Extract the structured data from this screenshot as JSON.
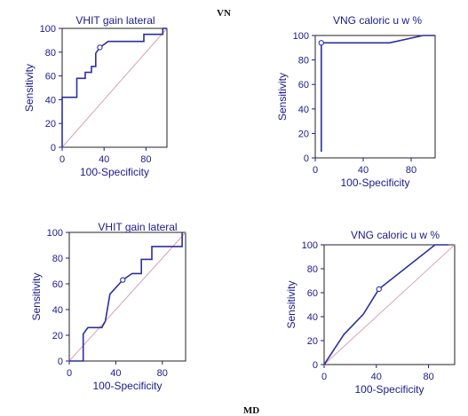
{
  "labels": {
    "top": "VN",
    "bottom": "MD"
  },
  "colors": {
    "curve": "#2b2f9e",
    "diagonal": "#d9a0b8",
    "text": "#1a1a8c"
  },
  "chart_data": [
    {
      "type": "line",
      "title": "VHIT gain lateral",
      "xlabel": "100-Specificity",
      "ylabel": "Sensitivity",
      "xlim": [
        0,
        100
      ],
      "ylim": [
        0,
        100
      ],
      "xticks": [
        0,
        40,
        80
      ],
      "yticks": [
        0,
        20,
        40,
        60,
        80,
        100
      ],
      "series": [
        {
          "values": [
            [
              0,
              0
            ],
            [
              0,
              42
            ],
            [
              14,
              42
            ],
            [
              14,
              58
            ],
            [
              22,
              58
            ],
            [
              22,
              63
            ],
            [
              28,
              63
            ],
            [
              28,
              68
            ],
            [
              32,
              68
            ],
            [
              32,
              79
            ],
            [
              36,
              84
            ],
            [
              44,
              89
            ],
            [
              78,
              89
            ],
            [
              78,
              95
            ],
            [
              96,
              95
            ],
            [
              96,
              100
            ],
            [
              100,
              100
            ]
          ]
        }
      ],
      "cutoff": [
        36,
        84
      ],
      "diagonal": true
    },
    {
      "type": "line",
      "title": "VNG caloric u w %",
      "xlabel": "100-Specificity",
      "ylabel": "Sensitivity",
      "xlim": [
        0,
        100
      ],
      "ylim": [
        0,
        100
      ],
      "xticks": [
        0,
        40,
        80
      ],
      "yticks": [
        0,
        20,
        40,
        60,
        80,
        100
      ],
      "series": [
        {
          "values": [
            [
              5,
              5
            ],
            [
              5,
              94
            ],
            [
              62,
              94
            ],
            [
              90,
              100
            ],
            [
              100,
              100
            ]
          ]
        }
      ],
      "cutoff": [
        5,
        94
      ],
      "diagonal": false
    },
    {
      "type": "line",
      "title": "VHIT gain lateral",
      "xlabel": "100-Specificity",
      "ylabel": "Sensitivity",
      "xlim": [
        0,
        100
      ],
      "ylim": [
        0,
        100
      ],
      "xticks": [
        0,
        40,
        80
      ],
      "yticks": [
        0,
        20,
        40,
        60,
        80,
        100
      ],
      "series": [
        {
          "values": [
            [
              0,
              0
            ],
            [
              12,
              0
            ],
            [
              12,
              21
            ],
            [
              16,
              26
            ],
            [
              28,
              26
            ],
            [
              31,
              31
            ],
            [
              35,
              52
            ],
            [
              46,
              63
            ],
            [
              54,
              68
            ],
            [
              62,
              68
            ],
            [
              62,
              79
            ],
            [
              71,
              79
            ],
            [
              71,
              89
            ],
            [
              97,
              89
            ],
            [
              97,
              100
            ]
          ]
        }
      ],
      "cutoff": [
        46,
        63
      ],
      "diagonal": true
    },
    {
      "type": "line",
      "title": "VNG caloric u w %",
      "xlabel": "100-Specificity",
      "ylabel": "Sensitivity",
      "xlim": [
        0,
        100
      ],
      "ylim": [
        0,
        100
      ],
      "xticks": [
        0,
        40,
        80
      ],
      "yticks": [
        0,
        20,
        40,
        60,
        80,
        100
      ],
      "series": [
        {
          "values": [
            [
              0,
              0
            ],
            [
              15,
              25
            ],
            [
              30,
              42
            ],
            [
              42,
              63
            ],
            [
              85,
              100
            ],
            [
              95,
              100
            ]
          ]
        }
      ],
      "cutoff": [
        42,
        63
      ],
      "diagonal": true
    }
  ]
}
